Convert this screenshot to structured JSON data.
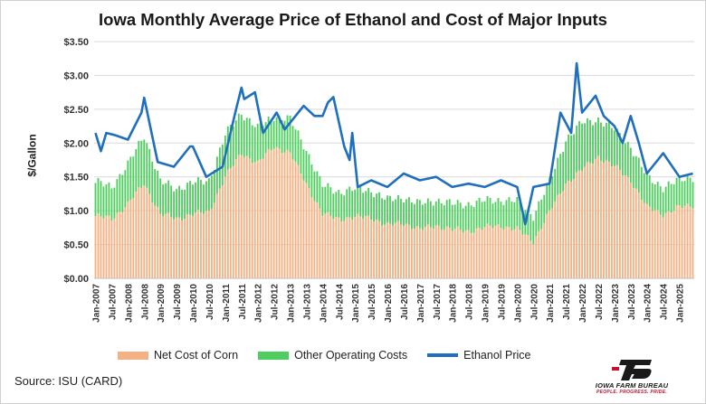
{
  "chart_data": {
    "type": "bar",
    "title": "Iowa Monthly Average Price of Ethanol and Cost of Major Inputs",
    "ylabel": "$/Gallon",
    "xlabel": "",
    "ylim": [
      0,
      3.5
    ],
    "yticks": [
      "$0.00",
      "$0.50",
      "$1.00",
      "$1.50",
      "$2.00",
      "$2.50",
      "$3.00",
      "$3.50"
    ],
    "x_tick_labels": [
      "Jan-2007",
      "Jul-2007",
      "Jan-2008",
      "Jul-2008",
      "Jan-2009",
      "Jul-2009",
      "Jan-2010",
      "Jul-2010",
      "Jan-2011",
      "Jul-2011",
      "Jan-2012",
      "Jul-2012",
      "Jan-2013",
      "Jul-2013",
      "Jan-2014",
      "Jul-2014",
      "Jan-2015",
      "Jul-2015",
      "Jan-2016",
      "Jul-2016",
      "Jan-2017",
      "Jul-2017",
      "Jan-2018",
      "Jul-2018",
      "Jan-2019",
      "Jul-2019",
      "Jan-2020",
      "Jul-2020",
      "Jan-2021",
      "Jul-2021",
      "Jan-2022",
      "Jul-2022",
      "Jan-2023",
      "Jul-2023",
      "Jan-2024",
      "Jul-2024",
      "Jan-2025"
    ],
    "grid": true,
    "legend_position": "bottom",
    "colors": {
      "corn": "#f4b183",
      "other": "#4fce5f",
      "ethanol": "#1f6fbe",
      "grid": "#d9d9d9"
    },
    "series": [
      {
        "name": "Net Cost of Corn",
        "type": "bar",
        "stacked": true,
        "x": [
          "Jan-2007",
          "Jul-2007",
          "Jan-2008",
          "Jul-2008",
          "Jan-2009",
          "Jul-2009",
          "Jan-2010",
          "Jul-2010",
          "Jan-2011",
          "Jul-2011",
          "Jan-2012",
          "Jul-2012",
          "Jan-2013",
          "Jul-2013",
          "Jan-2014",
          "Jul-2014",
          "Jan-2015",
          "Jul-2015",
          "Jan-2016",
          "Jul-2016",
          "Jan-2017",
          "Jul-2017",
          "Jan-2018",
          "Jul-2018",
          "Jan-2019",
          "Jul-2019",
          "Jan-2020",
          "Jul-2020",
          "Jan-2021",
          "Jul-2021",
          "Jan-2022",
          "Jul-2022",
          "Jan-2023",
          "Jul-2023",
          "Jan-2024",
          "Jul-2024",
          "Jan-2025",
          "Jun-2025"
        ],
        "values": [
          0.92,
          0.88,
          1.1,
          1.4,
          0.95,
          0.88,
          0.95,
          0.98,
          1.5,
          1.85,
          1.7,
          1.95,
          1.85,
          1.4,
          0.95,
          0.88,
          0.9,
          0.9,
          0.78,
          0.82,
          0.72,
          0.78,
          0.72,
          0.7,
          0.75,
          0.78,
          0.72,
          0.55,
          0.98,
          1.4,
          1.6,
          1.8,
          1.65,
          1.45,
          1.05,
          0.95,
          1.05,
          1.08
        ]
      },
      {
        "name": "Other Operating Costs",
        "type": "bar",
        "stacked": true,
        "x": [
          "Jan-2007",
          "Jul-2007",
          "Jan-2008",
          "Jul-2008",
          "Jan-2009",
          "Jul-2009",
          "Jan-2010",
          "Jul-2010",
          "Jan-2011",
          "Jul-2011",
          "Jan-2012",
          "Jul-2012",
          "Jan-2013",
          "Jul-2013",
          "Jan-2014",
          "Jul-2014",
          "Jan-2015",
          "Jul-2015",
          "Jan-2016",
          "Jul-2016",
          "Jan-2017",
          "Jul-2017",
          "Jan-2018",
          "Jul-2018",
          "Jan-2019",
          "Jul-2019",
          "Jan-2020",
          "Jul-2020",
          "Jan-2021",
          "Jul-2021",
          "Jan-2022",
          "Jul-2022",
          "Jan-2023",
          "Jul-2023",
          "Jan-2024",
          "Jul-2024",
          "Jan-2025",
          "Jun-2025"
        ],
        "values": [
          0.5,
          0.48,
          0.58,
          0.72,
          0.48,
          0.45,
          0.46,
          0.47,
          0.62,
          0.6,
          0.52,
          0.45,
          0.5,
          0.5,
          0.42,
          0.4,
          0.42,
          0.4,
          0.38,
          0.38,
          0.38,
          0.38,
          0.38,
          0.4,
          0.4,
          0.38,
          0.42,
          0.38,
          0.45,
          0.65,
          0.7,
          0.55,
          0.55,
          0.5,
          0.45,
          0.4,
          0.4,
          0.42
        ]
      },
      {
        "name": "Ethanol Price",
        "type": "line",
        "x": [
          "Jan-2007",
          "Mar-2007",
          "May-2007",
          "Aug-2007",
          "Jan-2008",
          "Jun-2008",
          "Jul-2008",
          "Dec-2008",
          "Jun-2009",
          "Dec-2009",
          "Jan-2010",
          "Jun-2010",
          "Dec-2010",
          "May-2011",
          "Jul-2011",
          "Aug-2011",
          "Dec-2011",
          "Mar-2012",
          "Aug-2012",
          "Nov-2012",
          "Apr-2013",
          "Jun-2013",
          "Oct-2013",
          "Jan-2014",
          "Mar-2014",
          "May-2014",
          "Sep-2014",
          "Nov-2014",
          "Dec-2014",
          "Feb-2015",
          "Jul-2015",
          "Jan-2016",
          "Jul-2016",
          "Jan-2017",
          "Jul-2017",
          "Jan-2018",
          "Jul-2018",
          "Jan-2019",
          "Jul-2019",
          "Jan-2020",
          "Apr-2020",
          "Jul-2020",
          "Jan-2021",
          "May-2021",
          "Sep-2021",
          "Nov-2021",
          "Jan-2022",
          "Jun-2022",
          "Sep-2022",
          "Jan-2023",
          "Apr-2023",
          "Jul-2023",
          "Oct-2023",
          "Jan-2024",
          "Jul-2024",
          "Jan-2025",
          "Jun-2025"
        ],
        "values": [
          2.15,
          1.88,
          2.15,
          2.12,
          2.05,
          2.45,
          2.67,
          1.72,
          1.65,
          1.95,
          1.95,
          1.5,
          1.65,
          2.5,
          2.82,
          2.65,
          2.75,
          2.15,
          2.45,
          2.2,
          2.45,
          2.55,
          2.4,
          2.4,
          2.6,
          2.68,
          1.95,
          1.75,
          2.15,
          1.35,
          1.45,
          1.35,
          1.55,
          1.45,
          1.5,
          1.35,
          1.4,
          1.35,
          1.45,
          1.35,
          0.8,
          1.35,
          1.4,
          2.45,
          2.15,
          3.18,
          2.45,
          2.7,
          2.4,
          2.25,
          2.0,
          2.4,
          2.0,
          1.55,
          1.85,
          1.5,
          1.55
        ]
      }
    ]
  },
  "legend": {
    "corn_label": "Net Cost of Corn",
    "other_label": "Other Operating Costs",
    "ethanol_label": "Ethanol Price"
  },
  "footer": {
    "source": "Source: ISU (CARD)",
    "logo_name": "IOWA FARM BUREAU",
    "logo_tagline": "PEOPLE. PROGRESS. PRIDE."
  }
}
